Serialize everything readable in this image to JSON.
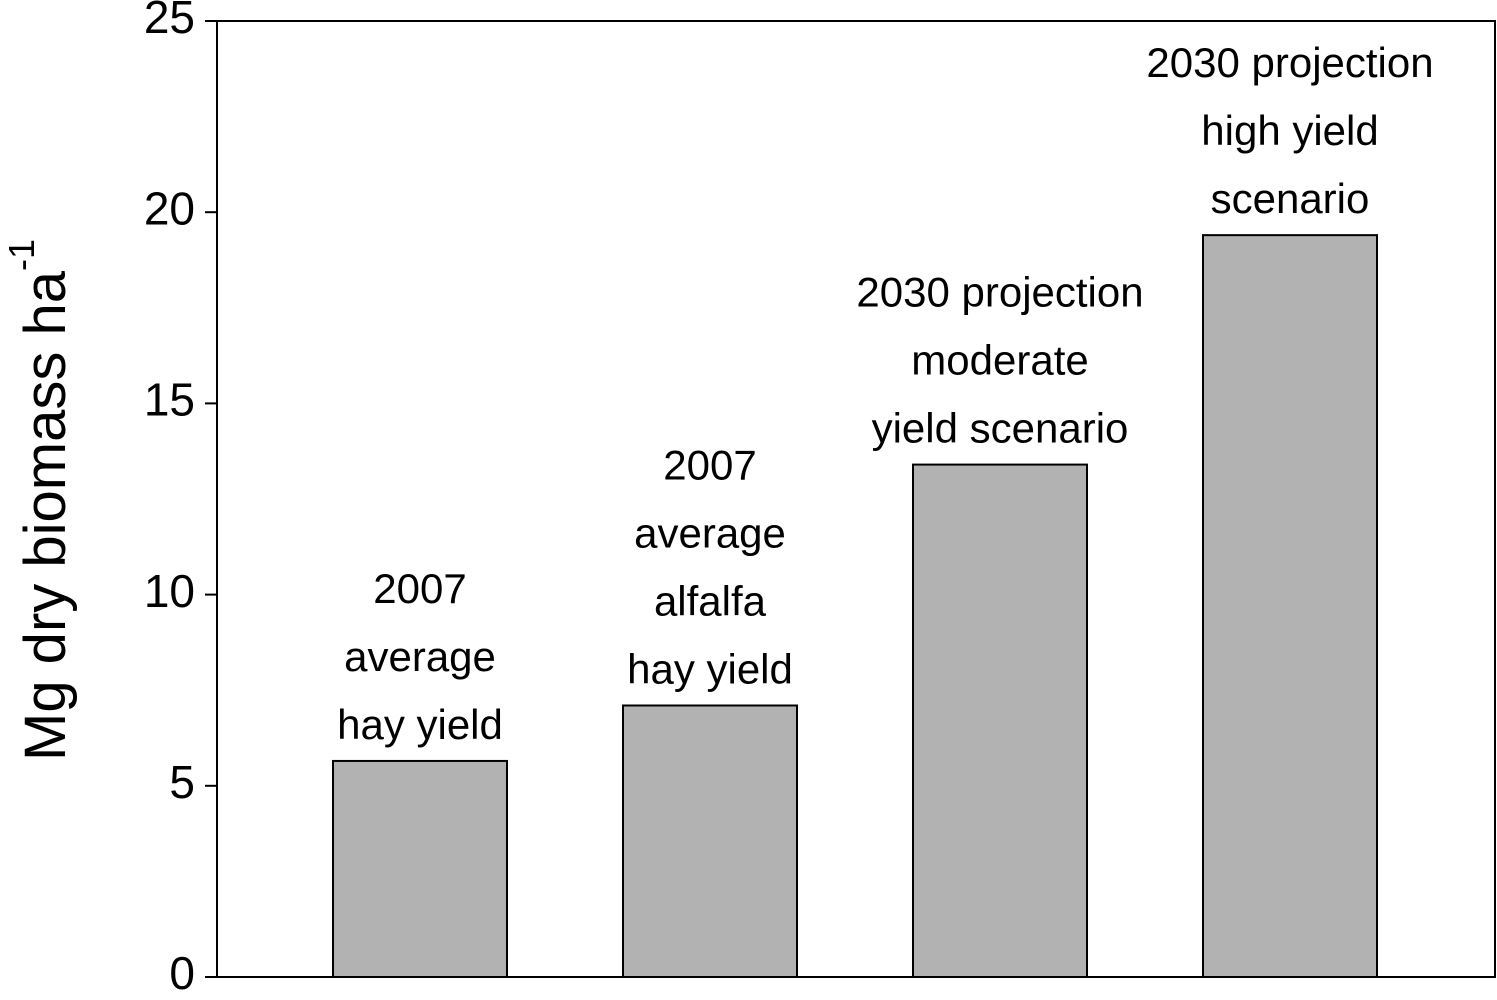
{
  "chart_data": {
    "type": "bar",
    "y_label": {
      "text": "Mg dry biomass ha",
      "superscript": "-1"
    },
    "categories": [
      [
        "2007",
        "average",
        "hay yield"
      ],
      [
        "2007",
        "average",
        "alfalfa",
        "hay yield"
      ],
      [
        "2030 projection",
        "moderate",
        "yield scenario"
      ],
      [
        "2030 projection",
        "high yield",
        "scenario"
      ]
    ],
    "values": [
      5.65,
      7.1,
      13.4,
      19.4
    ],
    "color": "#b2b2b2",
    "ylim": [
      0,
      25
    ],
    "yticks": [
      0,
      5,
      10,
      15,
      20,
      25
    ],
    "grid": false
  }
}
